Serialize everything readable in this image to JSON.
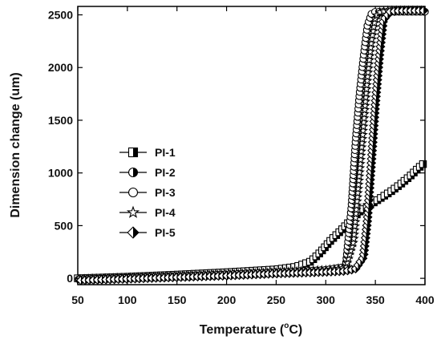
{
  "chart_data": {
    "type": "line",
    "xlabel_main": "Temperature (",
    "xlabel_sup": "o",
    "xlabel_end": "C)",
    "ylabel": "Dimension change (um)",
    "xlim": [
      50,
      400
    ],
    "ylim": [
      -60,
      2580
    ],
    "xticks": [
      50,
      100,
      150,
      200,
      250,
      300,
      350,
      400
    ],
    "yticks": [
      0,
      500,
      1000,
      1500,
      2000,
      2500
    ],
    "legend_position": "left-middle",
    "grid": false,
    "series": [
      {
        "name": "PI-1",
        "marker": "half-square",
        "x": [
          50,
          100,
          150,
          200,
          250,
          270,
          285,
          295,
          305,
          315,
          325,
          335,
          345,
          355,
          365,
          375,
          385,
          395,
          400
        ],
        "y": [
          0,
          15,
          35,
          58,
          85,
          110,
          160,
          250,
          360,
          450,
          550,
          640,
          700,
          760,
          820,
          890,
          970,
          1060,
          1100
        ]
      },
      {
        "name": "PI-2",
        "marker": "half-circle",
        "x": [
          50,
          100,
          150,
          200,
          250,
          300,
          320,
          328,
          332,
          336,
          340,
          344,
          348,
          352,
          360,
          370,
          380,
          390,
          400
        ],
        "y": [
          -10,
          5,
          20,
          35,
          55,
          75,
          95,
          500,
          1100,
          1500,
          1850,
          2200,
          2450,
          2510,
          2525,
          2530,
          2530,
          2530,
          2530
        ]
      },
      {
        "name": "PI-3",
        "marker": "open-circle",
        "x": [
          50,
          100,
          150,
          200,
          250,
          300,
          320,
          326,
          330,
          334,
          338,
          342,
          346,
          350,
          360,
          370,
          380,
          390,
          400
        ],
        "y": [
          -10,
          5,
          20,
          38,
          58,
          80,
          110,
          700,
          1300,
          1750,
          2100,
          2400,
          2510,
          2530,
          2530,
          2530,
          2530,
          2530,
          2530
        ]
      },
      {
        "name": "PI-4",
        "marker": "open-star",
        "x": [
          50,
          100,
          150,
          200,
          250,
          300,
          320,
          328,
          334,
          338,
          342,
          346,
          350,
          355,
          365,
          375,
          385,
          395,
          400
        ],
        "y": [
          -10,
          5,
          20,
          36,
          56,
          78,
          100,
          350,
          1000,
          1450,
          1900,
          2250,
          2480,
          2530,
          2540,
          2540,
          2540,
          2540,
          2540
        ]
      },
      {
        "name": "PI-5",
        "marker": "half-diamond",
        "x": [
          50,
          100,
          150,
          200,
          250,
          300,
          320,
          330,
          338,
          342,
          346,
          350,
          354,
          358,
          365,
          375,
          385,
          395,
          400
        ],
        "y": [
          -20,
          -5,
          10,
          25,
          45,
          60,
          70,
          90,
          200,
          550,
          1100,
          1650,
          2100,
          2450,
          2530,
          2540,
          2540,
          2540,
          2540
        ]
      }
    ]
  }
}
